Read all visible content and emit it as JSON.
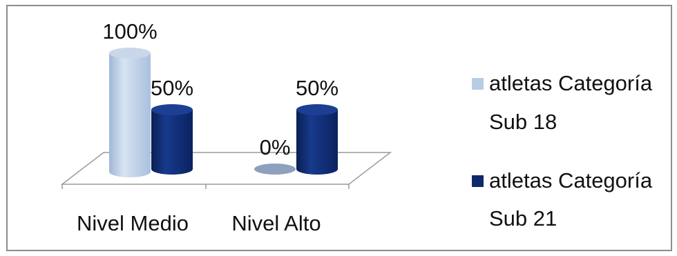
{
  "chart_data": {
    "type": "bar",
    "style": "3d-cylinder",
    "categories": [
      "Nivel Medio",
      "Nivel Alto"
    ],
    "series": [
      {
        "name": "atletas Categoría Sub 18",
        "values": [
          100,
          0
        ],
        "labels": [
          "100%",
          "0%"
        ],
        "color": "#b8cce4"
      },
      {
        "name": "atletas Categoría Sub 21",
        "values": [
          50,
          50
        ],
        "labels": [
          "50%",
          "50%"
        ],
        "color": "#0e2a6b"
      }
    ],
    "ylim": [
      0,
      100
    ],
    "grid": false,
    "legend": "right"
  },
  "legend": {
    "items": [
      {
        "line1": "atletas Categoría",
        "line2": "Sub 18",
        "color": "#b8cce4"
      },
      {
        "line1": "atletas Categoría",
        "line2": "Sub 21",
        "color": "#0e2a6b"
      }
    ]
  }
}
